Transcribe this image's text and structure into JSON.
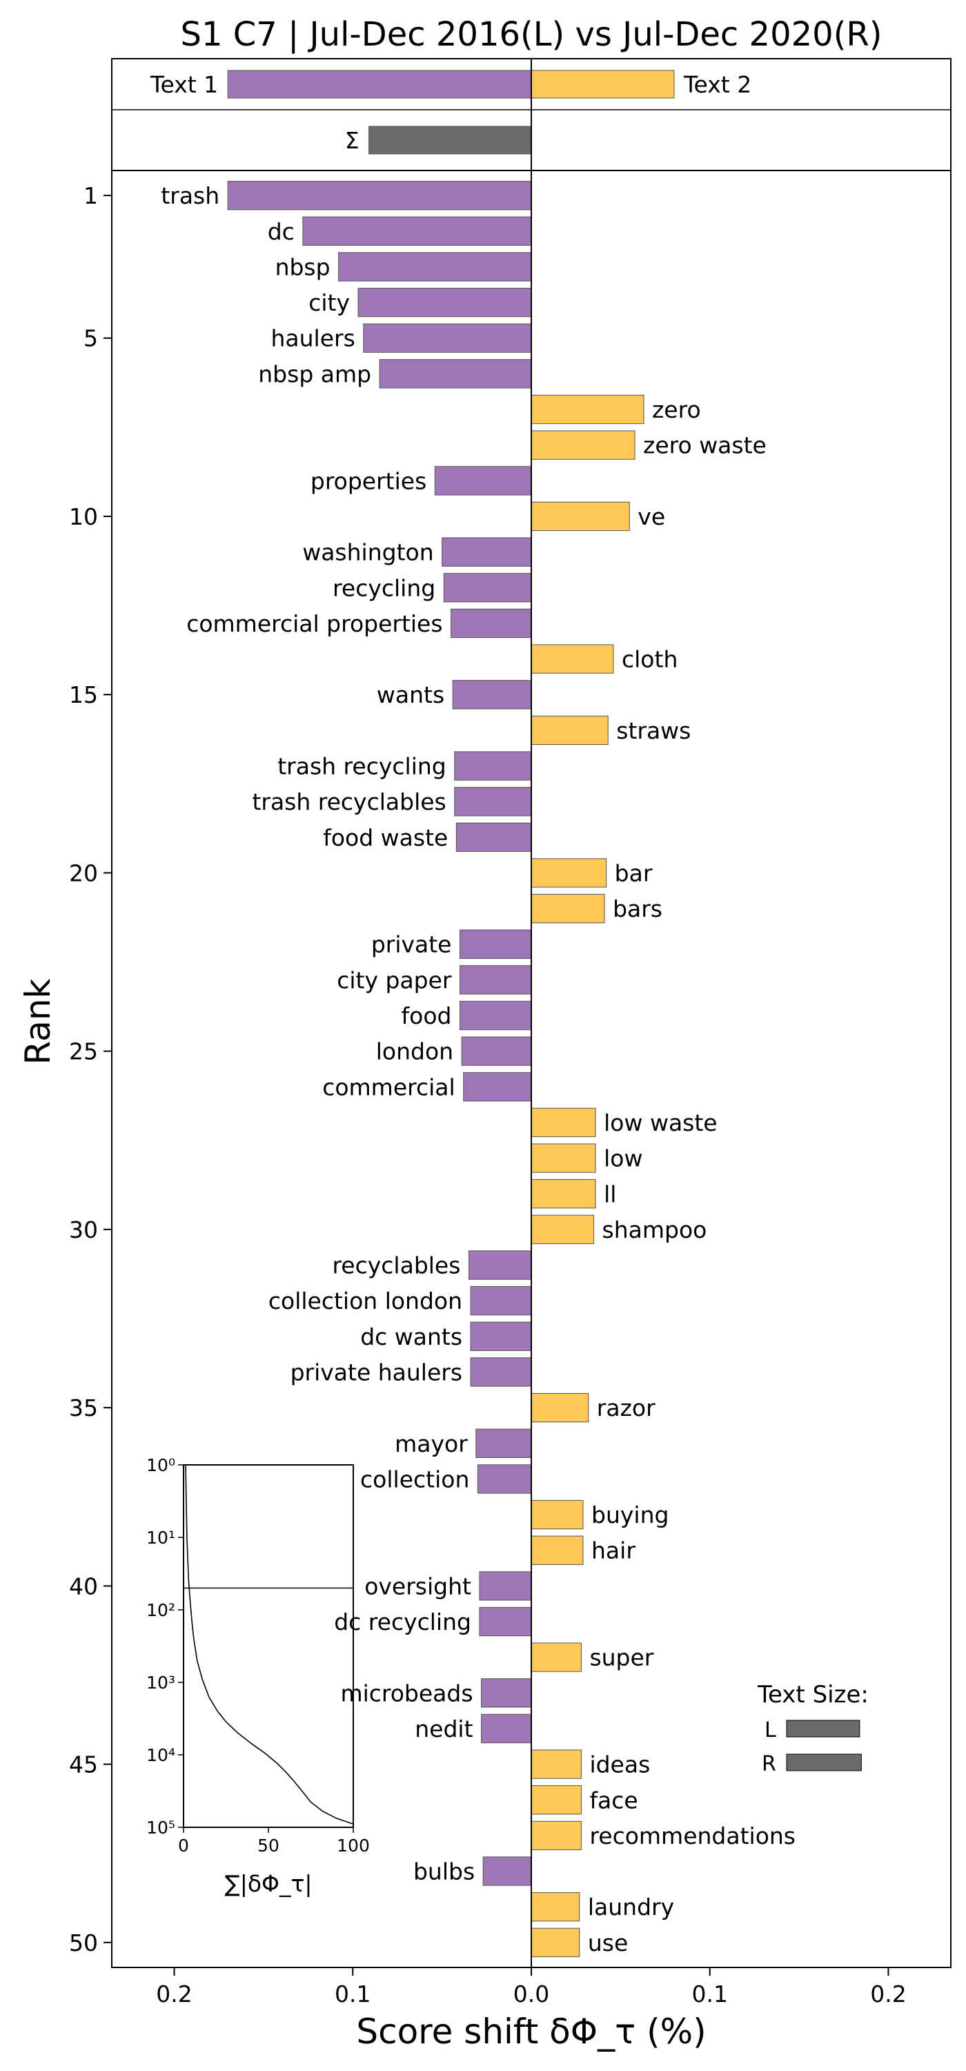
{
  "chart_data": {
    "type": "bar",
    "orientation": "horizontal-diverging",
    "title": "S1 C7 | Jul-Dec 2016(L) vs Jul-Dec 2020(R)",
    "xlabel": "Score shift δΦ_τ (%)",
    "ylabel": "Rank",
    "xlim": [
      -0.235,
      0.235
    ],
    "ylim": [
      0.3,
      50.7
    ],
    "x_tick_values": [
      -0.2,
      -0.1,
      0.0,
      0.1,
      0.2
    ],
    "x_tick_labels": [
      "0.2",
      "0.1",
      "0.0",
      "0.1",
      "0.2"
    ],
    "y_tick_values": [
      1,
      5,
      10,
      15,
      20,
      25,
      30,
      35,
      40,
      45,
      50
    ],
    "y_tick_labels": [
      "1",
      "5",
      "10",
      "15",
      "20",
      "25",
      "30",
      "35",
      "40",
      "45",
      "50"
    ],
    "colors": {
      "left": "#9f77b6",
      "right": "#fec858",
      "sum": "#6b6b6b",
      "edge": "#555555"
    },
    "summary": {
      "text1": {
        "label": "Text 1",
        "value": -0.17
      },
      "text2": {
        "label": "Text 2",
        "value": 0.08
      },
      "sum": {
        "label": "Σ",
        "value": -0.091
      }
    },
    "words": [
      {
        "rank": 1,
        "word": "trash",
        "value": -0.17
      },
      {
        "rank": 2,
        "word": "dc",
        "value": -0.128
      },
      {
        "rank": 3,
        "word": "nbsp",
        "value": -0.108
      },
      {
        "rank": 4,
        "word": "city",
        "value": -0.097
      },
      {
        "rank": 5,
        "word": "haulers",
        "value": -0.094
      },
      {
        "rank": 6,
        "word": "nbsp amp",
        "value": -0.085
      },
      {
        "rank": 7,
        "word": "zero",
        "value": 0.063
      },
      {
        "rank": 8,
        "word": "zero waste",
        "value": 0.058
      },
      {
        "rank": 9,
        "word": "properties",
        "value": -0.054
      },
      {
        "rank": 10,
        "word": "ve",
        "value": 0.055
      },
      {
        "rank": 11,
        "word": "washington",
        "value": -0.05
      },
      {
        "rank": 12,
        "word": "recycling",
        "value": -0.049
      },
      {
        "rank": 13,
        "word": "commercial properties",
        "value": -0.045
      },
      {
        "rank": 14,
        "word": "cloth",
        "value": 0.046
      },
      {
        "rank": 15,
        "word": "wants",
        "value": -0.044
      },
      {
        "rank": 16,
        "word": "straws",
        "value": 0.043
      },
      {
        "rank": 17,
        "word": "trash recycling",
        "value": -0.043
      },
      {
        "rank": 18,
        "word": "trash recyclables",
        "value": -0.043
      },
      {
        "rank": 19,
        "word": "food waste",
        "value": -0.042
      },
      {
        "rank": 20,
        "word": "bar",
        "value": 0.042
      },
      {
        "rank": 21,
        "word": "bars",
        "value": 0.041
      },
      {
        "rank": 22,
        "word": "private",
        "value": -0.04
      },
      {
        "rank": 23,
        "word": "city paper",
        "value": -0.04
      },
      {
        "rank": 24,
        "word": "food",
        "value": -0.04
      },
      {
        "rank": 25,
        "word": "london",
        "value": -0.039
      },
      {
        "rank": 26,
        "word": "commercial",
        "value": -0.038
      },
      {
        "rank": 27,
        "word": "low waste",
        "value": 0.036
      },
      {
        "rank": 28,
        "word": "low",
        "value": 0.036
      },
      {
        "rank": 29,
        "word": "ll",
        "value": 0.036
      },
      {
        "rank": 30,
        "word": "shampoo",
        "value": 0.035
      },
      {
        "rank": 31,
        "word": "recyclables",
        "value": -0.035
      },
      {
        "rank": 32,
        "word": "collection london",
        "value": -0.034
      },
      {
        "rank": 33,
        "word": "dc wants",
        "value": -0.034
      },
      {
        "rank": 34,
        "word": "private haulers",
        "value": -0.034
      },
      {
        "rank": 35,
        "word": "razor",
        "value": 0.032
      },
      {
        "rank": 36,
        "word": "mayor",
        "value": -0.031
      },
      {
        "rank": 37,
        "word": "collection",
        "value": -0.03
      },
      {
        "rank": 38,
        "word": "buying",
        "value": 0.029
      },
      {
        "rank": 39,
        "word": "hair",
        "value": 0.029
      },
      {
        "rank": 40,
        "word": "oversight",
        "value": -0.029
      },
      {
        "rank": 41,
        "word": "dc recycling",
        "value": -0.029
      },
      {
        "rank": 42,
        "word": "super",
        "value": 0.028
      },
      {
        "rank": 43,
        "word": "microbeads",
        "value": -0.028
      },
      {
        "rank": 44,
        "word": "nedit",
        "value": -0.028
      },
      {
        "rank": 45,
        "word": "ideas",
        "value": 0.028
      },
      {
        "rank": 46,
        "word": "face",
        "value": 0.028
      },
      {
        "rank": 47,
        "word": "recommendations",
        "value": 0.028
      },
      {
        "rank": 48,
        "word": "bulbs",
        "value": -0.027
      },
      {
        "rank": 49,
        "word": "laundry",
        "value": 0.027
      },
      {
        "rank": 50,
        "word": "use",
        "value": 0.027
      }
    ],
    "inset": {
      "xlabel": "∑|δΦ_τ|",
      "xlim": [
        0,
        100
      ],
      "x_ticks": [
        0,
        50,
        100
      ],
      "y_scale": "log",
      "y_inverted": true,
      "ylim": [
        1,
        100000
      ],
      "y_tick_labels": [
        "10⁰",
        "10¹",
        "10²",
        "10³",
        "10⁴",
        "10⁵"
      ],
      "hline_rank": 50,
      "curve": [
        [
          1.2,
          1
        ],
        [
          1.6,
          3
        ],
        [
          2,
          10
        ],
        [
          2.5,
          20
        ],
        [
          3,
          40
        ],
        [
          4,
          80
        ],
        [
          5,
          150
        ],
        [
          6,
          250
        ],
        [
          8,
          500
        ],
        [
          11,
          900
        ],
        [
          15,
          1600
        ],
        [
          20,
          2500
        ],
        [
          25,
          3500
        ],
        [
          32,
          5000
        ],
        [
          40,
          7000
        ],
        [
          48,
          9500
        ],
        [
          55,
          13000
        ],
        [
          60,
          17000
        ],
        [
          65,
          23000
        ],
        [
          70,
          32000
        ],
        [
          75,
          45000
        ],
        [
          82,
          60000
        ],
        [
          90,
          75000
        ],
        [
          100,
          90000
        ]
      ]
    },
    "legend": {
      "title": "Text Size:",
      "items": [
        {
          "label": "L",
          "value": 0.85
        },
        {
          "label": "R",
          "value": 0.87
        }
      ]
    }
  }
}
